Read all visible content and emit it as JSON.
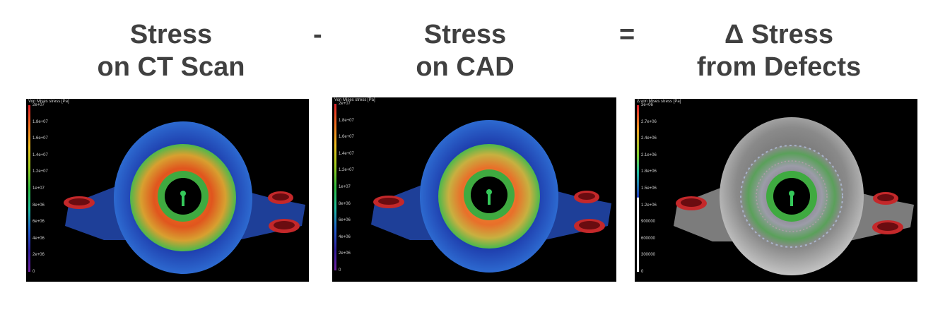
{
  "headings": {
    "ct_line1": "Stress",
    "ct_line2": "on CT Scan",
    "minus": "-",
    "cad_line1": "Stress",
    "cad_line2": "on CAD",
    "equals": "=",
    "delta_line1": "Δ Stress",
    "delta_line2": "from Defects"
  },
  "panels": [
    {
      "id": "ct",
      "colorbar_title": "Von Mises stress [Pa]",
      "colorbar_scheme": "rainbow",
      "ticks": [
        "2e+07",
        "1.8e+07",
        "1.6e+07",
        "1.4e+07",
        "1.2e+07",
        "1e+07",
        "8e+06",
        "6e+06",
        "4e+06",
        "2e+06",
        "0"
      ]
    },
    {
      "id": "cad",
      "colorbar_title": "Von Mises stress [Pa]",
      "colorbar_scheme": "rainbow",
      "ticks": [
        "2e+07",
        "1.8e+07",
        "1.6e+07",
        "1.4e+07",
        "1.2e+07",
        "1e+07",
        "8e+06",
        "6e+06",
        "4e+06",
        "2e+06",
        "0"
      ]
    },
    {
      "id": "delta",
      "colorbar_title": "Δ von Mises stress [Pa]",
      "colorbar_scheme": "rainbow-top-white-bottom",
      "ticks": [
        "3e+06",
        "2.7e+06",
        "2.4e+06",
        "2.1e+06",
        "1.8e+06",
        "1.5e+06",
        "1.2e+06",
        "900000",
        "600000",
        "300000",
        "0"
      ]
    }
  ],
  "colors": {
    "heading_text": "#404040",
    "panel_bg": "#000000",
    "high_stress": "#d23a1e",
    "low_stress": "#1e3aa8",
    "mid_stress": "#34c24a"
  }
}
